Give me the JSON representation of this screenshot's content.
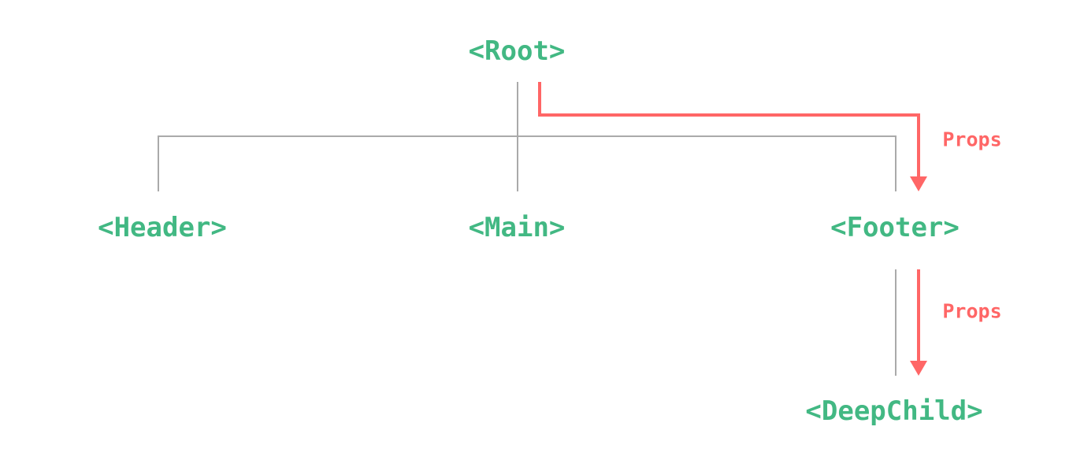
{
  "colors": {
    "component": "#42b883",
    "props_flow": "#ff6666",
    "tree_line": "#aaaaaa"
  },
  "nodes": {
    "root": "<Root>",
    "header": "<Header>",
    "main": "<Main>",
    "footer": "<Footer>",
    "deep_child": "<DeepChild>"
  },
  "edges": [
    {
      "from": "root",
      "to": "header"
    },
    {
      "from": "root",
      "to": "main"
    },
    {
      "from": "root",
      "to": "footer"
    },
    {
      "from": "footer",
      "to": "deep_child"
    }
  ],
  "flows": [
    {
      "from": "root",
      "to": "footer",
      "label": "Props"
    },
    {
      "from": "footer",
      "to": "deep_child",
      "label": "Props"
    }
  ]
}
